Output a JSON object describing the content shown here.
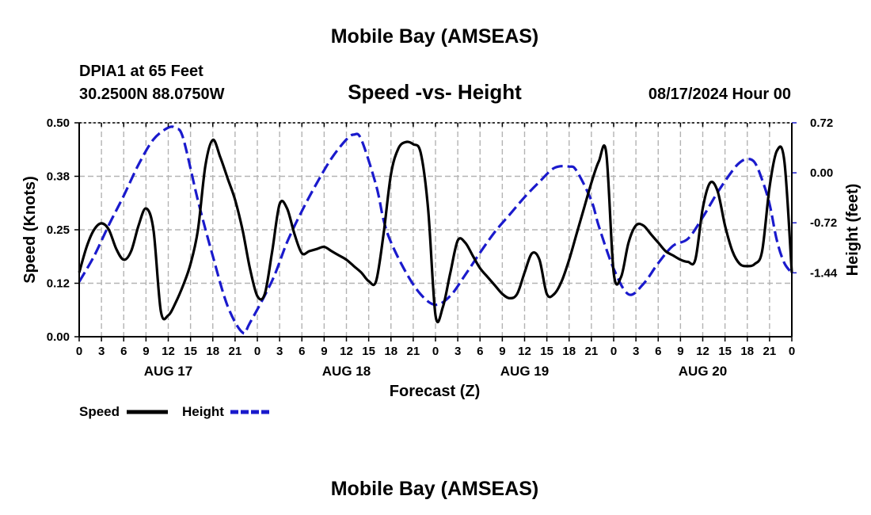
{
  "header": {
    "title": "Mobile Bay (AMSEAS)",
    "station": "DPIA1 at 65 Feet",
    "location": "30.2500N  88.0750W",
    "datetime": "08/17/2024 Hour 00",
    "footer_title": "Mobile Bay (AMSEAS)"
  },
  "chart_data": {
    "type": "line",
    "title": "Speed -vs- Height",
    "xlabel": "Forecast (Z)",
    "ylabel": "Speed (Knots)",
    "y2label": "Height (feet)",
    "x_units": "hours from 08/17 00Z",
    "xlim": [
      0,
      96
    ],
    "ylim": [
      0,
      0.5
    ],
    "y2lim": [
      -2.36,
      0.72
    ],
    "x_tick_values": [
      0,
      3,
      6,
      9,
      12,
      15,
      18,
      21,
      24,
      27,
      30,
      33,
      36,
      39,
      42,
      45,
      48,
      51,
      54,
      57,
      60,
      63,
      66,
      69,
      72,
      75,
      78,
      81,
      84,
      87,
      90,
      93,
      96
    ],
    "x_tick_labels": [
      "0",
      "3",
      "6",
      "9",
      "12",
      "15",
      "18",
      "21",
      "0",
      "3",
      "6",
      "9",
      "12",
      "15",
      "18",
      "21",
      "0",
      "3",
      "6",
      "9",
      "12",
      "15",
      "18",
      "21",
      "0",
      "3",
      "6",
      "9",
      "12",
      "15",
      "18",
      "21",
      "0"
    ],
    "day_labels": [
      {
        "x": 12,
        "label": "AUG 17"
      },
      {
        "x": 36,
        "label": "AUG 18"
      },
      {
        "x": 60,
        "label": "AUG 19"
      },
      {
        "x": 84,
        "label": "AUG 20"
      }
    ],
    "y_ticks": [
      "0.00",
      "0.12",
      "0.25",
      "0.38",
      "0.50"
    ],
    "y_tick_values": [
      0,
      0.125,
      0.25,
      0.375,
      0.5
    ],
    "y2_ticks": [
      "-1.44",
      "-0.72",
      "0.00",
      "0.72"
    ],
    "y2_tick_values": [
      -1.44,
      -0.72,
      0,
      0.72
    ],
    "grid": true,
    "series": [
      {
        "name": "Speed",
        "axis": "left",
        "color": "#000000",
        "dash": "solid",
        "points": [
          [
            0,
            0.15
          ],
          [
            1,
            0.21
          ],
          [
            2,
            0.25
          ],
          [
            3,
            0.265
          ],
          [
            4,
            0.25
          ],
          [
            5,
            0.205
          ],
          [
            6,
            0.18
          ],
          [
            7,
            0.2
          ],
          [
            8,
            0.26
          ],
          [
            9,
            0.3
          ],
          [
            10,
            0.25
          ],
          [
            11,
            0.06
          ],
          [
            12,
            0.05
          ],
          [
            13,
            0.08
          ],
          [
            14,
            0.12
          ],
          [
            15,
            0.17
          ],
          [
            16,
            0.25
          ],
          [
            17,
            0.4
          ],
          [
            18,
            0.46
          ],
          [
            19,
            0.42
          ],
          [
            20,
            0.37
          ],
          [
            21,
            0.32
          ],
          [
            22,
            0.25
          ],
          [
            23,
            0.16
          ],
          [
            24,
            0.095
          ],
          [
            25,
            0.1
          ],
          [
            26,
            0.2
          ],
          [
            27,
            0.31
          ],
          [
            28,
            0.3
          ],
          [
            29,
            0.24
          ],
          [
            30,
            0.195
          ],
          [
            31,
            0.2
          ],
          [
            32,
            0.205
          ],
          [
            33,
            0.21
          ],
          [
            34,
            0.2
          ],
          [
            35,
            0.19
          ],
          [
            36,
            0.18
          ],
          [
            37,
            0.165
          ],
          [
            38,
            0.15
          ],
          [
            39,
            0.13
          ],
          [
            40,
            0.13
          ],
          [
            41,
            0.24
          ],
          [
            42,
            0.38
          ],
          [
            43,
            0.44
          ],
          [
            44,
            0.455
          ],
          [
            45,
            0.45
          ],
          [
            46,
            0.43
          ],
          [
            47,
            0.3
          ],
          [
            48,
            0.05
          ],
          [
            49,
            0.07
          ],
          [
            50,
            0.15
          ],
          [
            51,
            0.225
          ],
          [
            52,
            0.22
          ],
          [
            53,
            0.19
          ],
          [
            54,
            0.16
          ],
          [
            55,
            0.14
          ],
          [
            56,
            0.12
          ],
          [
            57,
            0.1
          ],
          [
            58,
            0.09
          ],
          [
            59,
            0.1
          ],
          [
            60,
            0.15
          ],
          [
            61,
            0.195
          ],
          [
            62,
            0.18
          ],
          [
            63,
            0.1
          ],
          [
            64,
            0.1
          ],
          [
            65,
            0.13
          ],
          [
            66,
            0.18
          ],
          [
            67,
            0.24
          ],
          [
            68,
            0.3
          ],
          [
            69,
            0.36
          ],
          [
            70,
            0.41
          ],
          [
            71,
            0.43
          ],
          [
            72,
            0.15
          ],
          [
            73,
            0.14
          ],
          [
            74,
            0.22
          ],
          [
            75,
            0.26
          ],
          [
            76,
            0.26
          ],
          [
            77,
            0.24
          ],
          [
            78,
            0.22
          ],
          [
            79,
            0.2
          ],
          [
            80,
            0.19
          ],
          [
            81,
            0.18
          ],
          [
            82,
            0.175
          ],
          [
            83,
            0.18
          ],
          [
            84,
            0.3
          ],
          [
            85,
            0.36
          ],
          [
            86,
            0.34
          ],
          [
            87,
            0.26
          ],
          [
            88,
            0.2
          ],
          [
            89,
            0.17
          ],
          [
            90,
            0.165
          ],
          [
            91,
            0.17
          ],
          [
            92,
            0.2
          ],
          [
            93,
            0.35
          ],
          [
            94,
            0.435
          ],
          [
            95,
            0.41
          ],
          [
            96,
            0.15
          ]
        ]
      },
      {
        "name": "Height",
        "axis": "right",
        "color": "#1a1acc",
        "dash": "dashed",
        "points": [
          [
            0,
            -1.57
          ],
          [
            2,
            -1.2
          ],
          [
            4,
            -0.75
          ],
          [
            6,
            -0.33
          ],
          [
            8,
            0.12
          ],
          [
            10,
            0.48
          ],
          [
            12,
            0.65
          ],
          [
            13,
            0.64
          ],
          [
            14,
            0.5
          ],
          [
            16,
            -0.4
          ],
          [
            18,
            -1.2
          ],
          [
            20,
            -1.92
          ],
          [
            22,
            -2.3
          ],
          [
            23,
            -2.16
          ],
          [
            26,
            -1.55
          ],
          [
            28,
            -1.0
          ],
          [
            30,
            -0.55
          ],
          [
            32,
            -0.15
          ],
          [
            34,
            0.21
          ],
          [
            36,
            0.48
          ],
          [
            37,
            0.55
          ],
          [
            38,
            0.48
          ],
          [
            40,
            -0.18
          ],
          [
            41,
            -0.68
          ],
          [
            42,
            -1.0
          ],
          [
            44,
            -1.43
          ],
          [
            46,
            -1.75
          ],
          [
            48,
            -1.9
          ],
          [
            50,
            -1.77
          ],
          [
            52,
            -1.47
          ],
          [
            54,
            -1.15
          ],
          [
            56,
            -0.85
          ],
          [
            58,
            -0.6
          ],
          [
            60,
            -0.35
          ],
          [
            62,
            -0.13
          ],
          [
            64,
            0.07
          ],
          [
            66,
            0.09
          ],
          [
            67,
            0.03
          ],
          [
            69,
            -0.4
          ],
          [
            70,
            -0.77
          ],
          [
            72,
            -1.38
          ],
          [
            74,
            -1.75
          ],
          [
            76,
            -1.6
          ],
          [
            78,
            -1.3
          ],
          [
            80,
            -1.05
          ],
          [
            82,
            -0.95
          ],
          [
            84,
            -0.64
          ],
          [
            86,
            -0.28
          ],
          [
            88,
            0.03
          ],
          [
            89,
            0.15
          ],
          [
            90,
            0.2
          ],
          [
            91,
            0.15
          ],
          [
            92,
            -0.1
          ],
          [
            93,
            -0.45
          ],
          [
            94,
            -0.98
          ],
          [
            95,
            -1.3
          ],
          [
            96,
            -1.44
          ]
        ]
      }
    ],
    "legend": [
      {
        "label": "Speed",
        "color": "#000000",
        "dash": "solid"
      },
      {
        "label": "Height",
        "color": "#1a1acc",
        "dash": "dashed"
      }
    ]
  }
}
